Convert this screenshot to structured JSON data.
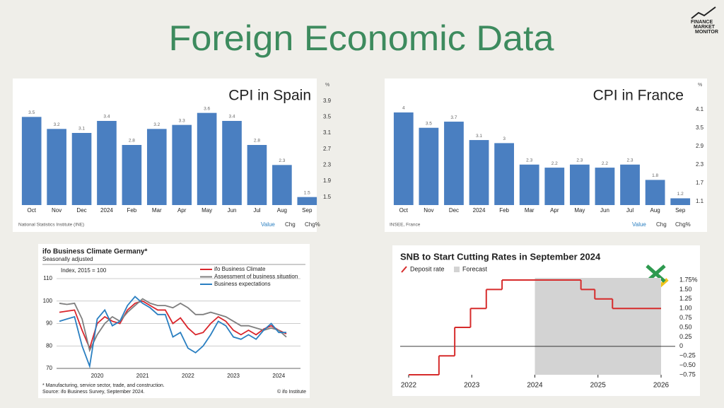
{
  "title": "Foreign Economic Data",
  "logo": [
    "FINANCE",
    "MARKET",
    "MONITOR"
  ],
  "chart_data": [
    {
      "type": "bar",
      "title": "CPI in Spain",
      "color": "#4a7fc1",
      "categories": [
        "Oct",
        "Nov",
        "Dec",
        "2024",
        "Feb",
        "Mar",
        "Apr",
        "May",
        "Jun",
        "Jul",
        "Aug",
        "Sep"
      ],
      "values": [
        3.5,
        3.2,
        3.1,
        3.4,
        2.8,
        3.2,
        3.3,
        3.6,
        3.4,
        2.8,
        2.3,
        1.5
      ],
      "ylim": [
        1.3,
        4.3
      ],
      "yticks": [
        3.9,
        3.5,
        3.1,
        2.7,
        2.3,
        1.9,
        1.5
      ],
      "y_unit": "%",
      "source": "National Statistics Institute (INE)",
      "buttons": [
        "Value",
        "Chg",
        "Chg%"
      ]
    },
    {
      "type": "bar",
      "title": "CPI in France",
      "color": "#4a7fc1",
      "categories": [
        "Oct",
        "Nov",
        "Dec",
        "2024",
        "Feb",
        "Mar",
        "Apr",
        "May",
        "Jun",
        "Jul",
        "Aug",
        "Sep"
      ],
      "values": [
        4,
        3.5,
        3.7,
        3.1,
        3,
        2.3,
        2.2,
        2.3,
        2.2,
        2.3,
        1.8,
        1.2
      ],
      "ylim": [
        0.98,
        4.9
      ],
      "yticks": [
        4.1,
        3.5,
        2.9,
        2.3,
        1.7,
        1.1
      ],
      "y_unit": "%",
      "source": "INSEE, France",
      "buttons": [
        "Value",
        "Chg",
        "Chg%"
      ]
    },
    {
      "type": "line",
      "title": "ifo Business Climate Germany*",
      "subtitle": "Seasonally adjusted",
      "y_label": "Index, 2015 = 100",
      "categories": [
        null,
        null,
        null,
        null,
        null,
        "2020",
        null,
        null,
        null,
        null,
        null,
        "2021",
        null,
        null,
        null,
        null,
        null,
        "2022",
        null,
        null,
        null,
        null,
        null,
        "2023",
        null,
        null,
        null,
        null,
        null,
        "2024",
        null
      ],
      "series": [
        {
          "name": "ifo Business Climate",
          "color": "#d9262c",
          "values": [
            95,
            95.5,
            96,
            87,
            79,
            90,
            93,
            91,
            90,
            96,
            99,
            100,
            98,
            96,
            96,
            90,
            92.5,
            88,
            85,
            86,
            90,
            93,
            91,
            87,
            85,
            87,
            85,
            87.5,
            89,
            87,
            85.4
          ]
        },
        {
          "name": "Assessment of business situation",
          "color": "#7f7f7f",
          "values": [
            99,
            98.5,
            99,
            92,
            78,
            85,
            90,
            93,
            91,
            95,
            98,
            101,
            99,
            98,
            98,
            97,
            99,
            97,
            94,
            94,
            95,
            94,
            93,
            91,
            89,
            89,
            88,
            87,
            88,
            87,
            84
          ]
        },
        {
          "name": "Business expectations",
          "color": "#2a7fc1",
          "values": [
            91,
            92,
            93,
            80,
            71,
            92,
            96,
            89,
            91,
            98,
            102,
            99,
            97,
            94,
            94,
            84,
            86,
            79,
            77,
            80,
            85,
            91,
            89,
            84,
            83,
            85,
            83,
            87,
            90,
            86,
            86
          ]
        }
      ],
      "ylim": [
        70,
        110
      ],
      "yticks": [
        70,
        80,
        90,
        100,
        110
      ],
      "grid": true,
      "notes": [
        "* Manufacturing, service sector, trade, and construction.",
        "Source: ifo Business Survey, September 2024."
      ],
      "copyright": "© ifo Institute"
    },
    {
      "type": "step",
      "title": "SNB to Start Cutting Rates in September 2024",
      "series": [
        {
          "name": "Deposit rate",
          "color": "#d62b2b",
          "x": [
            2022,
            2022.48,
            2022.73,
            2022.98,
            2023.23,
            2023.48,
            2024.73,
            2024.95,
            2025.23
          ],
          "values": [
            -0.75,
            -0.25,
            0.5,
            1,
            1.5,
            1.75,
            1.5,
            1.25,
            1
          ]
        }
      ],
      "forecast": {
        "name": "Forecast",
        "color": "#d3d3d3",
        "span": [
          2024,
          2026
        ]
      },
      "xlim": [
        2022,
        2026
      ],
      "xticks": [
        2022,
        2023,
        2024,
        2025,
        2026
      ],
      "ylim": [
        -0.75,
        1.75
      ],
      "yticks": [
        {
          "value": 1.75,
          "label": "1.75%"
        },
        {
          "value": 1.5,
          "label": "1.50"
        },
        1.25,
        {
          "value": 1,
          "label": "1.00"
        },
        0.75,
        {
          "value": 0.5,
          "label": "0.50"
        },
        0.25,
        0,
        {
          "value": -0.25,
          "label": "−0.25"
        },
        {
          "value": -0.5,
          "label": "−0.50"
        },
        {
          "value": -0.75,
          "label": "−0.75"
        }
      ]
    }
  ]
}
